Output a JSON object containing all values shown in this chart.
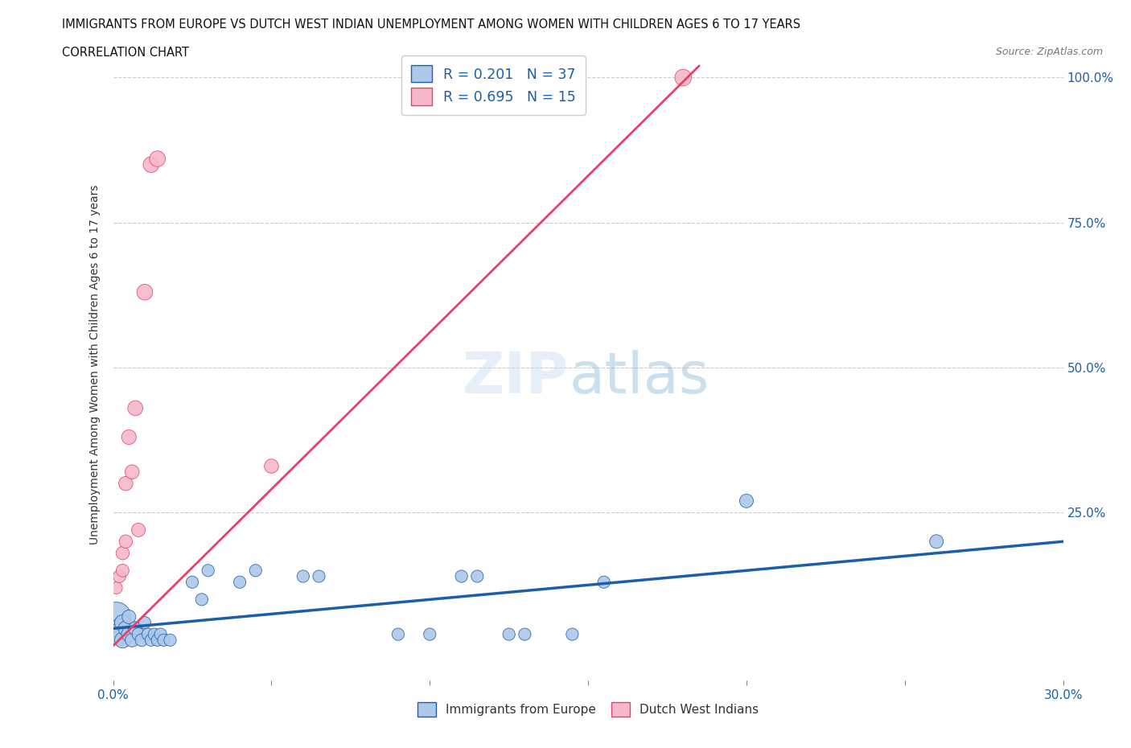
{
  "title": "IMMIGRANTS FROM EUROPE VS DUTCH WEST INDIAN UNEMPLOYMENT AMONG WOMEN WITH CHILDREN AGES 6 TO 17 YEARS",
  "subtitle": "CORRELATION CHART",
  "source": "Source: ZipAtlas.com",
  "ylabel": "Unemployment Among Women with Children Ages 6 to 17 years",
  "xlim": [
    0.0,
    0.3
  ],
  "ylim": [
    -0.04,
    1.05
  ],
  "color_blue": "#adc8e8",
  "color_pink": "#f5b8c8",
  "line_blue": "#1a5fa8",
  "line_pink": "#e8406a",
  "legend_1_label_r": "R = 0.201",
  "legend_1_label_n": "N = 37",
  "legend_2_label_r": "R = 0.695",
  "legend_2_label_n": "N = 15",
  "blue_points": [
    [
      0.001,
      0.07
    ],
    [
      0.002,
      0.05
    ],
    [
      0.002,
      0.04
    ],
    [
      0.003,
      0.06
    ],
    [
      0.003,
      0.03
    ],
    [
      0.004,
      0.05
    ],
    [
      0.005,
      0.04
    ],
    [
      0.005,
      0.07
    ],
    [
      0.006,
      0.03
    ],
    [
      0.007,
      0.05
    ],
    [
      0.008,
      0.04
    ],
    [
      0.009,
      0.03
    ],
    [
      0.01,
      0.06
    ],
    [
      0.011,
      0.04
    ],
    [
      0.012,
      0.03
    ],
    [
      0.013,
      0.04
    ],
    [
      0.014,
      0.03
    ],
    [
      0.015,
      0.04
    ],
    [
      0.016,
      0.03
    ],
    [
      0.018,
      0.03
    ],
    [
      0.025,
      0.13
    ],
    [
      0.028,
      0.1
    ],
    [
      0.03,
      0.15
    ],
    [
      0.04,
      0.13
    ],
    [
      0.045,
      0.15
    ],
    [
      0.06,
      0.14
    ],
    [
      0.065,
      0.14
    ],
    [
      0.09,
      0.04
    ],
    [
      0.1,
      0.04
    ],
    [
      0.11,
      0.14
    ],
    [
      0.115,
      0.14
    ],
    [
      0.125,
      0.04
    ],
    [
      0.13,
      0.04
    ],
    [
      0.145,
      0.04
    ],
    [
      0.155,
      0.13
    ],
    [
      0.2,
      0.27
    ],
    [
      0.26,
      0.2
    ]
  ],
  "pink_points": [
    [
      0.001,
      0.12
    ],
    [
      0.002,
      0.14
    ],
    [
      0.003,
      0.18
    ],
    [
      0.003,
      0.15
    ],
    [
      0.004,
      0.3
    ],
    [
      0.004,
      0.2
    ],
    [
      0.005,
      0.38
    ],
    [
      0.006,
      0.32
    ],
    [
      0.007,
      0.43
    ],
    [
      0.008,
      0.22
    ],
    [
      0.01,
      0.63
    ],
    [
      0.012,
      0.85
    ],
    [
      0.014,
      0.86
    ],
    [
      0.05,
      0.33
    ],
    [
      0.18,
      1.0
    ]
  ],
  "blue_sizes": [
    700,
    300,
    400,
    200,
    200,
    180,
    180,
    150,
    150,
    150,
    130,
    130,
    120,
    120,
    120,
    120,
    120,
    120,
    120,
    120,
    120,
    120,
    120,
    120,
    120,
    120,
    120,
    120,
    120,
    120,
    120,
    120,
    120,
    120,
    120,
    150,
    150
  ],
  "pink_sizes": [
    120,
    130,
    140,
    130,
    160,
    140,
    170,
    160,
    180,
    150,
    200,
    200,
    200,
    160,
    220
  ]
}
